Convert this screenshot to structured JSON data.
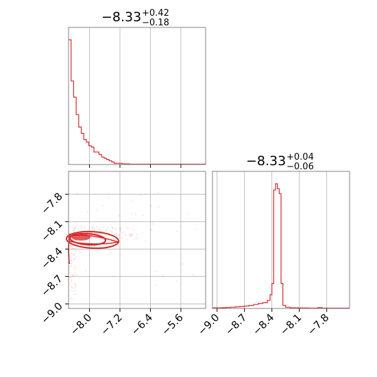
{
  "chart_data": {
    "type": "corner",
    "color": "#d62728",
    "panels": [
      {
        "id": "hist_x",
        "type": "histogram",
        "title": {
          "median": "−8.33",
          "upper": "+0.42",
          "lower": "−0.18"
        },
        "xlim": [
          -8.55,
          -4.95
        ],
        "gridlines_x": [
          -8.0,
          -7.2,
          -6.4,
          -5.6
        ],
        "bin_width": 0.0667,
        "counts": [
          100,
          67,
          54,
          40,
          30,
          25,
          20,
          18,
          15,
          14,
          10,
          10,
          8,
          6,
          5,
          4,
          3,
          2,
          1,
          1,
          1,
          0.5,
          0.5,
          0.5,
          0.3,
          0.3,
          0.3,
          0.3,
          0.3,
          0.3,
          0.3,
          0.3,
          0.3,
          0.3,
          0.3,
          0.3,
          0.3,
          0.3,
          0.3,
          0.3,
          0.3,
          0.3,
          0.3,
          0.3,
          0.3,
          0.3,
          0.3,
          0.3,
          0.3,
          0.3,
          0.3,
          0.3,
          0.3,
          0.3
        ]
      },
      {
        "id": "hist_y",
        "type": "histogram",
        "title": {
          "median": "−8.33",
          "upper": "+0.04",
          "lower": "−0.06"
        },
        "xlim": [
          -9.05,
          -7.55
        ],
        "gridlines_x": [
          -9.0,
          -8.7,
          -8.4,
          -8.1,
          -7.8
        ],
        "tick_labels": [
          "−9.0",
          "−8.7",
          "−8.4",
          "−8.1",
          "−7.8"
        ],
        "bins": [
          {
            "x": -9.05,
            "c": 0.5
          },
          {
            "x": -9.0,
            "c": 0.5
          },
          {
            "x": -8.95,
            "c": 0.6
          },
          {
            "x": -8.9,
            "c": 0.8
          },
          {
            "x": -8.85,
            "c": 1.0
          },
          {
            "x": -8.8,
            "c": 1.3
          },
          {
            "x": -8.75,
            "c": 1.6
          },
          {
            "x": -8.7,
            "c": 2.0
          },
          {
            "x": -8.65,
            "c": 2.4
          },
          {
            "x": -8.6,
            "c": 3.2
          },
          {
            "x": -8.55,
            "c": 4.0
          },
          {
            "x": -8.5,
            "c": 4.6
          },
          {
            "x": -8.45,
            "c": 6.5
          },
          {
            "x": -8.42,
            "c": 11.0
          },
          {
            "x": -8.4,
            "c": 20.0
          },
          {
            "x": -8.38,
            "c": 95.0
          },
          {
            "x": -8.36,
            "c": 100.0
          },
          {
            "x": -8.34,
            "c": 96.0
          },
          {
            "x": -8.32,
            "c": 92.0
          },
          {
            "x": -8.3,
            "c": 20.0
          },
          {
            "x": -8.28,
            "c": 2.5
          },
          {
            "x": -8.25,
            "c": 1.0
          },
          {
            "x": -8.2,
            "c": 0.5
          },
          {
            "x": -8.1,
            "c": 0.4
          },
          {
            "x": -8.0,
            "c": 0.3
          },
          {
            "x": -7.9,
            "c": 0.6
          },
          {
            "x": -7.85,
            "c": 0.3
          },
          {
            "x": -7.8,
            "c": 0.3
          },
          {
            "x": -7.6,
            "c": 0.3
          }
        ]
      },
      {
        "id": "scatter_xy",
        "type": "2d-density",
        "xlim": [
          -8.55,
          -4.95
        ],
        "ylim": [
          -9.05,
          -7.55
        ],
        "x_ticks": [
          -8.0,
          -7.2,
          -6.4,
          -5.6
        ],
        "x_tick_labels": [
          "−8.0",
          "−7.2",
          "−6.4",
          "−5.6"
        ],
        "y_ticks": [
          -7.8,
          -8.1,
          -8.4,
          -8.7,
          -9.0
        ],
        "y_tick_labels": [
          "−7.8",
          "−8.1",
          "−8.4",
          "−8.7",
          "−9.0"
        ]
      }
    ]
  }
}
